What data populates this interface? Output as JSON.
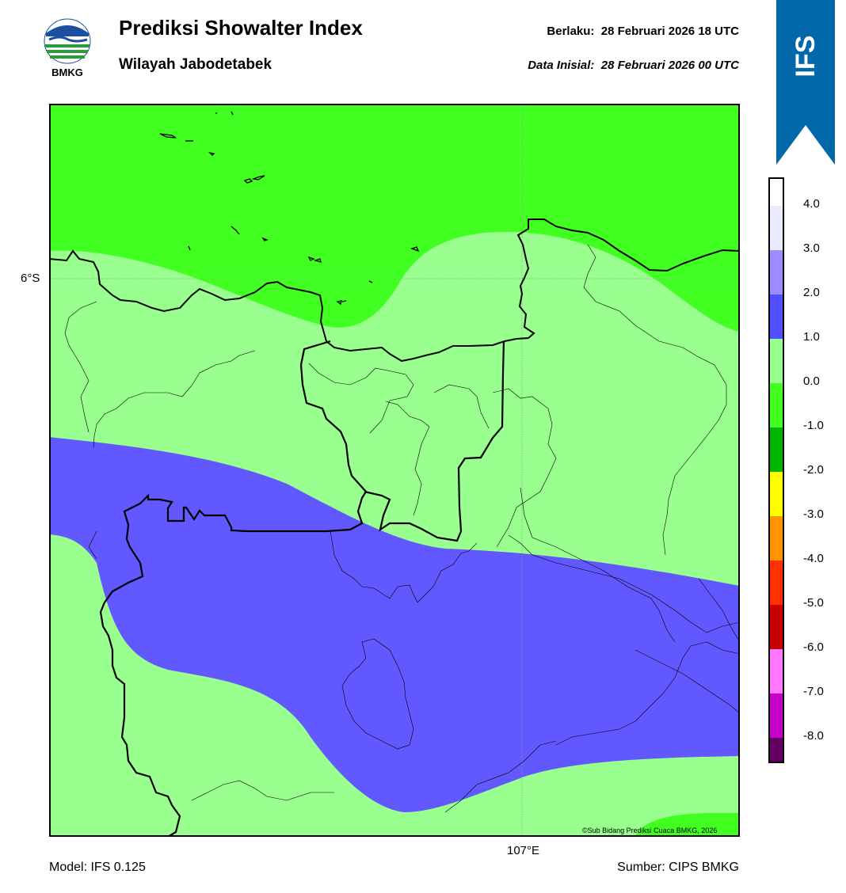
{
  "header": {
    "title": "Prediksi Showalter Index",
    "subtitle": "Wilayah Jabodetabek",
    "valid_label": "Berlaku:  28 Februari 2026 18 UTC",
    "init_label": "Data Inisial:  28 Februari 2026 00 UTC"
  },
  "logo": {
    "text": "BMKG"
  },
  "ribbon": {
    "text": "IFS",
    "color": "#0068a8"
  },
  "map": {
    "lat_label": "6°S",
    "lon_label": "107°E",
    "copyright": "©Sub Bidang Prediksi Cuaca BMKG, 2026",
    "colors": {
      "green_bright": "#41ff21",
      "green_light": "#99ff8e",
      "blue": "#6158ff"
    }
  },
  "colorbar": {
    "labels": [
      "4.0",
      "3.0",
      "2.0",
      "1.0",
      "0.0",
      "-1.0",
      "-2.0",
      "-3.0",
      "-4.0",
      "-5.0",
      "-6.0",
      "-7.0",
      "-8.0"
    ],
    "colors": [
      "#ebebff",
      "#9d8cff",
      "#5050ff",
      "#99ff8e",
      "#41ff21",
      "#00b400",
      "#ffff00",
      "#ff9600",
      "#ff3200",
      "#c80000",
      "#ff78ff",
      "#c800c8",
      "#640064"
    ]
  },
  "footer": {
    "model": "Model: IFS 0.125",
    "source": "Sumber: CIPS BMKG"
  }
}
